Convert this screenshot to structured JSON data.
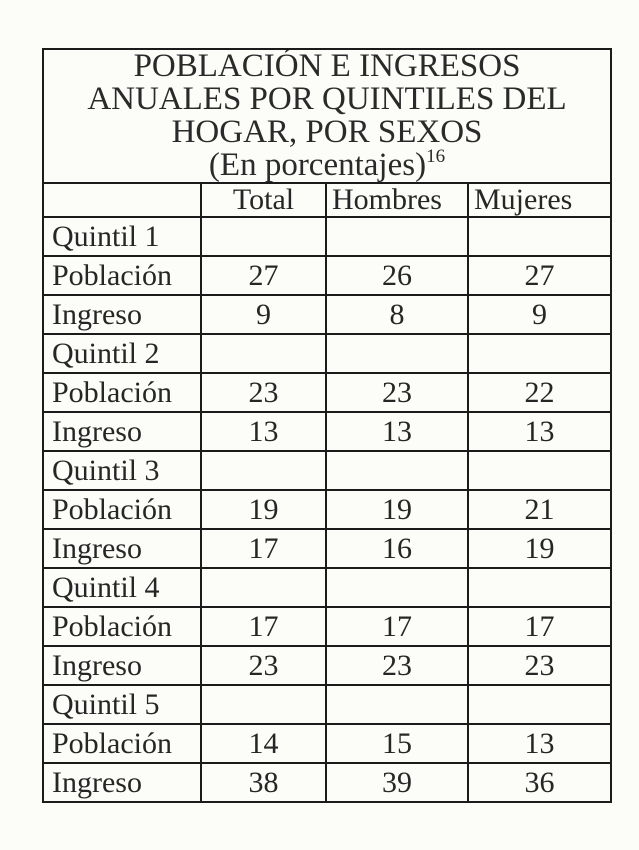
{
  "colors": {
    "page_background": "#fcfcf9",
    "ink": "#262626",
    "border": "#1b1b1b"
  },
  "title": {
    "line1": "POBLACIÓN E INGRESOS",
    "line2": "ANUALES POR QUINTILES DEL",
    "line3": "HOGAR, POR SEXOS",
    "line4": "(En porcentajes)",
    "footnote_ref": "16"
  },
  "table": {
    "columns": [
      "",
      "Total",
      "Hombres",
      "Mujeres"
    ],
    "rows": [
      {
        "label": "Quintil 1",
        "values": [
          "",
          "",
          ""
        ]
      },
      {
        "label": "Población",
        "values": [
          "27",
          "26",
          "27"
        ]
      },
      {
        "label": "Ingreso",
        "values": [
          "9",
          "8",
          "9"
        ]
      },
      {
        "label": "Quintil 2",
        "values": [
          "",
          "",
          ""
        ]
      },
      {
        "label": "Población",
        "values": [
          "23",
          "23",
          "22"
        ]
      },
      {
        "label": "Ingreso",
        "values": [
          "13",
          "13",
          "13"
        ]
      },
      {
        "label": "Quintil 3",
        "values": [
          "",
          "",
          ""
        ]
      },
      {
        "label": "Población",
        "values": [
          "19",
          "19",
          "21"
        ]
      },
      {
        "label": "Ingreso",
        "values": [
          "17",
          "16",
          "19"
        ]
      },
      {
        "label": "Quintil 4",
        "values": [
          "",
          "",
          ""
        ]
      },
      {
        "label": "Población",
        "values": [
          "17",
          "17",
          "17"
        ]
      },
      {
        "label": "Ingreso",
        "values": [
          "23",
          "23",
          "23"
        ]
      },
      {
        "label": "Quintil 5",
        "values": [
          "",
          "",
          ""
        ]
      },
      {
        "label": "Población",
        "values": [
          "14",
          "15",
          "13"
        ]
      },
      {
        "label": "Ingreso",
        "values": [
          "38",
          "39",
          "36"
        ]
      }
    ]
  }
}
